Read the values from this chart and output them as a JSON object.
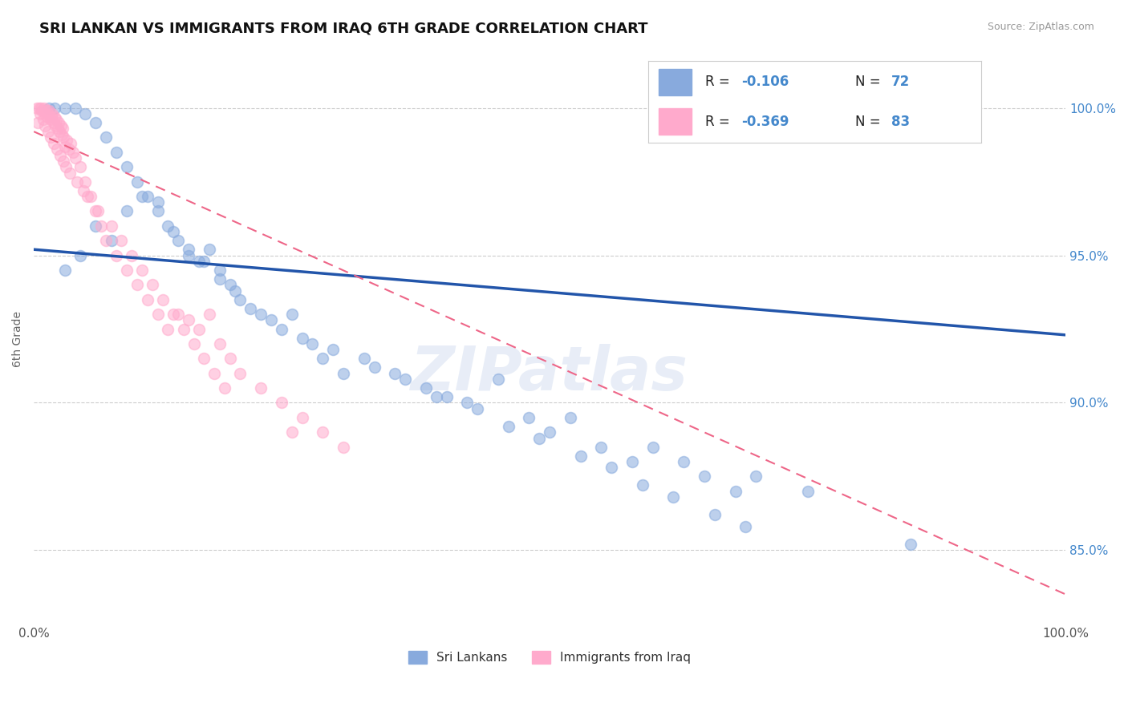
{
  "title": "SRI LANKAN VS IMMIGRANTS FROM IRAQ 6TH GRADE CORRELATION CHART",
  "source": "Source: ZipAtlas.com",
  "ylabel": "6th Grade",
  "legend_blue_r": "-0.106",
  "legend_blue_n": "72",
  "legend_pink_r": "-0.369",
  "legend_pink_n": "83",
  "legend_blue_label": "Sri Lankans",
  "legend_pink_label": "Immigrants from Iraq",
  "xmin": 0.0,
  "xmax": 100.0,
  "ymin": 82.5,
  "ymax": 101.8,
  "yticks": [
    85.0,
    90.0,
    95.0,
    100.0
  ],
  "ytick_labels": [
    "85.0%",
    "90.0%",
    "95.0%",
    "100.0%"
  ],
  "gridline_color": "#cccccc",
  "blue_color": "#88aadd",
  "pink_color": "#ffaacc",
  "blue_line_color": "#2255aa",
  "pink_line_color": "#ee6688",
  "blue_line_y0": 95.2,
  "blue_line_y1": 92.3,
  "pink_line_y0": 99.2,
  "pink_line_y1": 83.5,
  "blue_scatter_x": [
    1.5,
    2.0,
    3.0,
    4.0,
    5.0,
    6.0,
    7.0,
    8.0,
    9.0,
    10.0,
    11.0,
    12.0,
    13.0,
    14.0,
    15.0,
    16.0,
    17.0,
    18.0,
    19.0,
    20.0,
    22.0,
    24.0,
    25.0,
    27.0,
    28.0,
    30.0,
    32.0,
    35.0,
    38.0,
    40.0,
    42.0,
    45.0,
    48.0,
    50.0,
    52.0,
    55.0,
    58.0,
    60.0,
    63.0,
    65.0,
    68.0,
    70.0,
    75.0,
    3.0,
    4.5,
    6.0,
    7.5,
    9.0,
    10.5,
    12.0,
    13.5,
    15.0,
    16.5,
    18.0,
    19.5,
    21.0,
    23.0,
    26.0,
    29.0,
    33.0,
    36.0,
    39.0,
    43.0,
    46.0,
    49.0,
    53.0,
    56.0,
    59.0,
    62.0,
    66.0,
    69.0,
    85.0
  ],
  "blue_scatter_y": [
    100.0,
    100.0,
    100.0,
    100.0,
    99.8,
    99.5,
    99.0,
    98.5,
    98.0,
    97.5,
    97.0,
    96.5,
    96.0,
    95.5,
    95.0,
    94.8,
    95.2,
    94.5,
    94.0,
    93.5,
    93.0,
    92.5,
    93.0,
    92.0,
    91.5,
    91.0,
    91.5,
    91.0,
    90.5,
    90.2,
    90.0,
    90.8,
    89.5,
    89.0,
    89.5,
    88.5,
    88.0,
    88.5,
    88.0,
    87.5,
    87.0,
    87.5,
    87.0,
    94.5,
    95.0,
    96.0,
    95.5,
    96.5,
    97.0,
    96.8,
    95.8,
    95.2,
    94.8,
    94.2,
    93.8,
    93.2,
    92.8,
    92.2,
    91.8,
    91.2,
    90.8,
    90.2,
    89.8,
    89.2,
    88.8,
    88.2,
    87.8,
    87.2,
    86.8,
    86.2,
    85.8,
    85.2
  ],
  "pink_scatter_x": [
    0.3,
    0.5,
    0.7,
    0.8,
    1.0,
    1.1,
    1.2,
    1.3,
    1.4,
    1.5,
    1.6,
    1.7,
    1.8,
    1.9,
    2.0,
    2.1,
    2.2,
    2.3,
    2.4,
    2.5,
    2.6,
    2.7,
    2.8,
    2.9,
    3.0,
    3.2,
    3.4,
    3.6,
    3.8,
    4.0,
    4.5,
    5.0,
    5.5,
    6.0,
    6.5,
    7.0,
    8.0,
    9.0,
    10.0,
    11.0,
    12.0,
    13.0,
    14.0,
    15.0,
    16.0,
    17.0,
    18.0,
    19.0,
    20.0,
    22.0,
    24.0,
    26.0,
    28.0,
    30.0,
    0.4,
    0.6,
    0.9,
    1.05,
    1.35,
    1.65,
    1.95,
    2.25,
    2.55,
    2.85,
    3.1,
    3.5,
    4.2,
    4.8,
    5.2,
    6.2,
    7.5,
    8.5,
    9.5,
    10.5,
    11.5,
    12.5,
    13.5,
    14.5,
    15.5,
    16.5,
    17.5,
    18.5,
    25.0
  ],
  "pink_scatter_y": [
    100.0,
    100.0,
    100.0,
    99.9,
    100.0,
    99.8,
    99.9,
    99.7,
    99.8,
    99.9,
    99.6,
    99.7,
    99.8,
    99.5,
    99.7,
    99.4,
    99.6,
    99.3,
    99.5,
    99.2,
    99.4,
    99.1,
    99.3,
    99.0,
    98.7,
    98.9,
    98.6,
    98.8,
    98.5,
    98.3,
    98.0,
    97.5,
    97.0,
    96.5,
    96.0,
    95.5,
    95.0,
    94.5,
    94.0,
    93.5,
    93.0,
    92.5,
    93.0,
    92.8,
    92.5,
    93.0,
    92.0,
    91.5,
    91.0,
    90.5,
    90.0,
    89.5,
    89.0,
    88.5,
    99.5,
    99.8,
    99.6,
    99.4,
    99.2,
    99.0,
    98.8,
    98.6,
    98.4,
    98.2,
    98.0,
    97.8,
    97.5,
    97.2,
    97.0,
    96.5,
    96.0,
    95.5,
    95.0,
    94.5,
    94.0,
    93.5,
    93.0,
    92.5,
    92.0,
    91.5,
    91.0,
    90.5,
    89.0
  ]
}
